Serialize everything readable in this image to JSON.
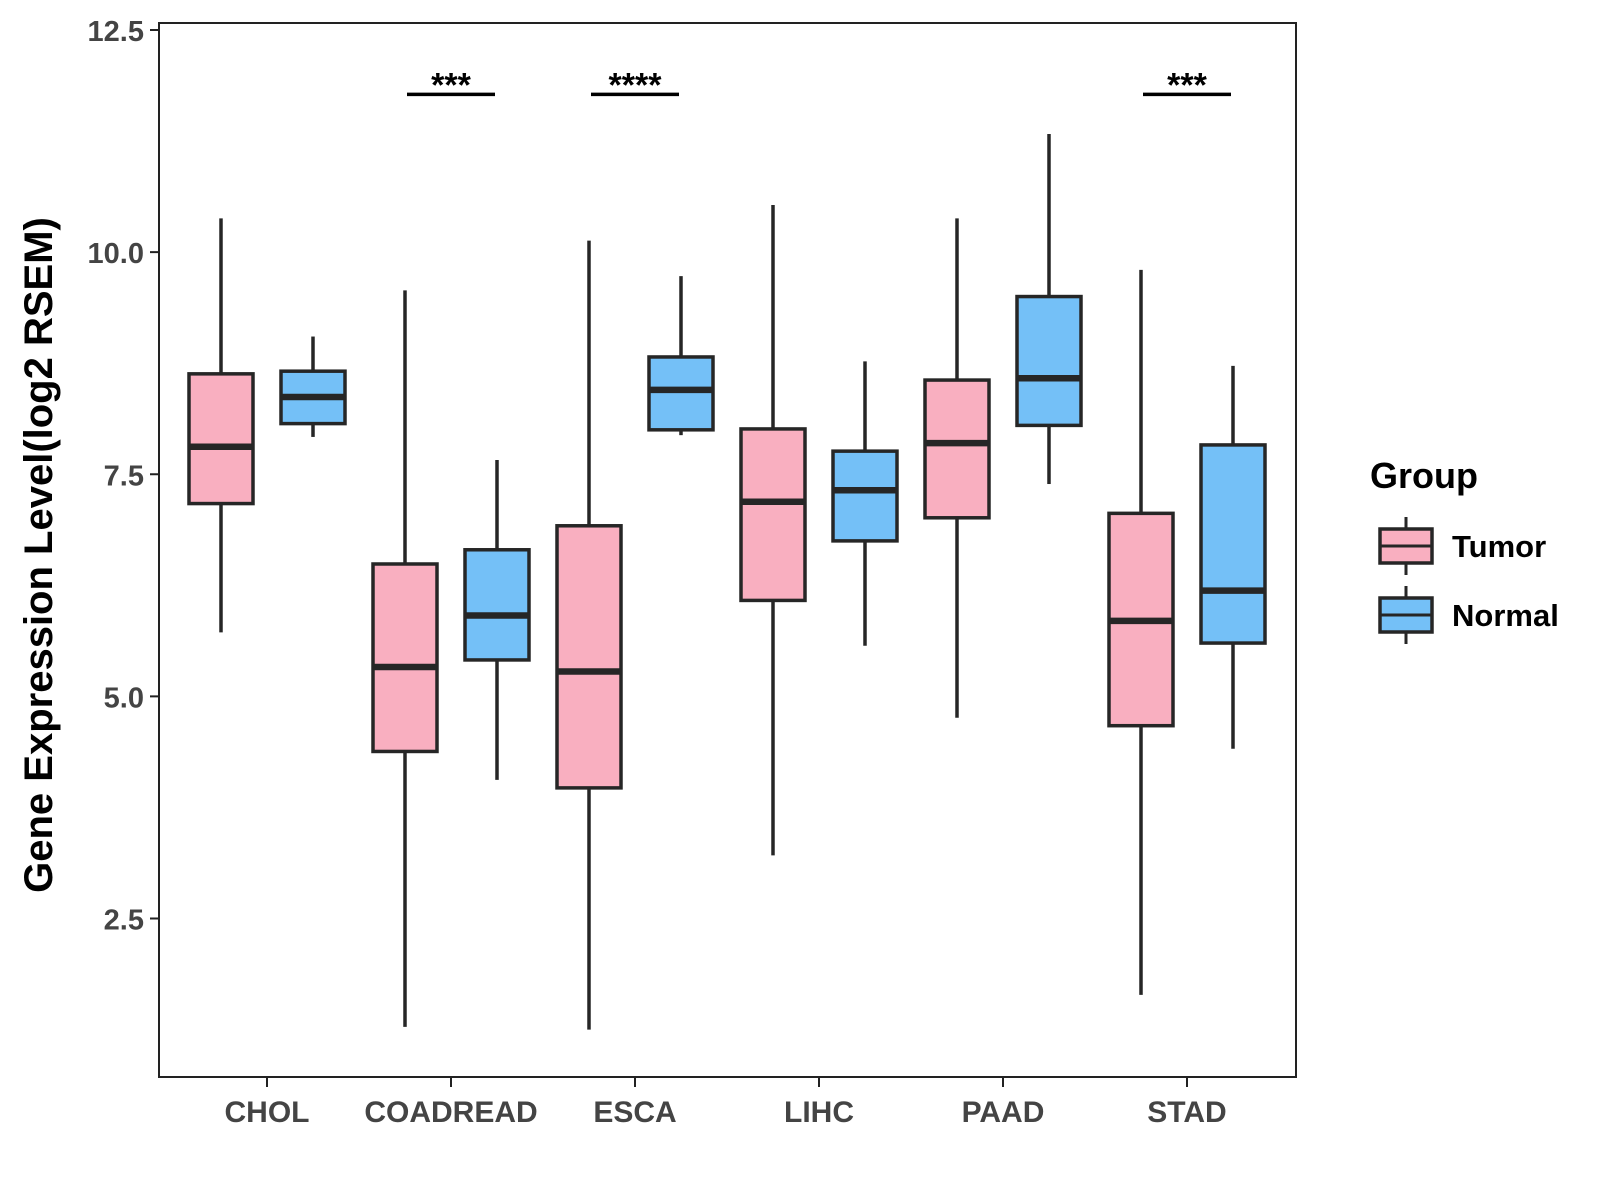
{
  "chart_data": {
    "type": "boxplot",
    "title": "",
    "xlabel": "",
    "ylabel": "Gene Expression Level(log2 RSEM)",
    "ylim": [
      0.9,
      12.6
    ],
    "yticks": [
      "2.5",
      "5.0",
      "7.5",
      "10.0",
      "12.5"
    ],
    "categories": [
      "CHOL",
      "COADREAD",
      "ESCA",
      "LIHC",
      "PAAD",
      "STAD"
    ],
    "legend": {
      "title": "Group",
      "position": "right",
      "entries": [
        "Tumor",
        "Normal"
      ]
    },
    "colors": {
      "Tumor": "#F9AFC0",
      "Normal": "#74C0F7",
      "stroke": "#262626"
    },
    "series": [
      {
        "name": "Tumor",
        "boxes": [
          {
            "category": "CHOL",
            "min": 5.72,
            "q1": 7.17,
            "median": 7.81,
            "q3": 8.63,
            "max": 10.38
          },
          {
            "category": "COADREAD",
            "min": 1.28,
            "q1": 4.38,
            "median": 5.33,
            "q3": 6.49,
            "max": 9.57
          },
          {
            "category": "ESCA",
            "min": 1.25,
            "q1": 3.97,
            "median": 5.28,
            "q3": 6.92,
            "max": 10.13
          },
          {
            "category": "LIHC",
            "min": 3.21,
            "q1": 6.08,
            "median": 7.19,
            "q3": 8.01,
            "max": 10.53
          },
          {
            "category": "PAAD",
            "min": 4.76,
            "q1": 7.01,
            "median": 7.85,
            "q3": 8.56,
            "max": 10.38
          },
          {
            "category": "STAD",
            "min": 1.64,
            "q1": 4.67,
            "median": 5.85,
            "q3": 7.06,
            "max": 9.8
          }
        ]
      },
      {
        "name": "Normal",
        "boxes": [
          {
            "category": "CHOL",
            "min": 7.92,
            "q1": 8.07,
            "median": 8.37,
            "q3": 8.66,
            "max": 9.05
          },
          {
            "category": "COADREAD",
            "min": 4.06,
            "q1": 5.41,
            "median": 5.91,
            "q3": 6.65,
            "max": 7.66
          },
          {
            "category": "ESCA",
            "min": 7.94,
            "q1": 8.0,
            "median": 8.45,
            "q3": 8.82,
            "max": 9.73
          },
          {
            "category": "LIHC",
            "min": 5.57,
            "q1": 6.75,
            "median": 7.32,
            "q3": 7.76,
            "max": 8.77
          },
          {
            "category": "PAAD",
            "min": 7.39,
            "q1": 8.05,
            "median": 8.58,
            "q3": 9.5,
            "max": 11.33
          },
          {
            "category": "STAD",
            "min": 4.41,
            "q1": 5.6,
            "median": 6.19,
            "q3": 7.83,
            "max": 8.72
          }
        ]
      }
    ],
    "annotations": [
      {
        "category": "COADREAD",
        "label": "***",
        "y": 12.0
      },
      {
        "category": "ESCA",
        "label": "****",
        "y": 12.0
      },
      {
        "category": "STAD",
        "label": "***",
        "y": 12.0
      }
    ]
  }
}
